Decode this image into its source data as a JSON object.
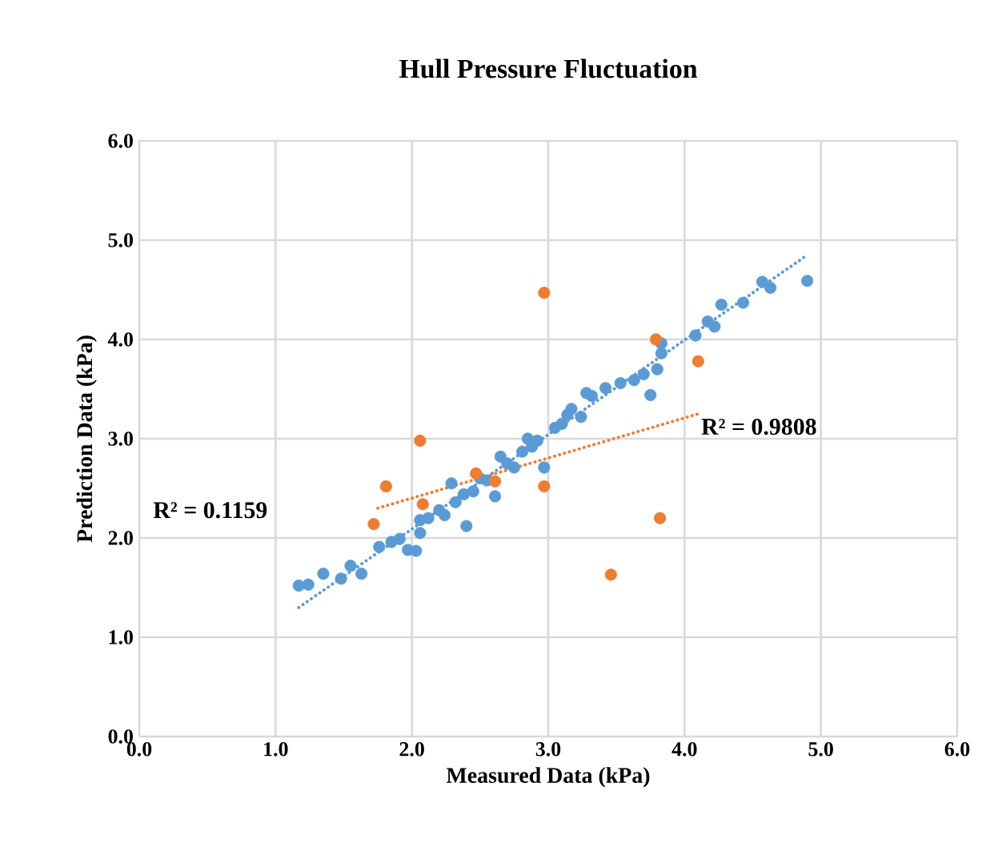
{
  "chart_data": {
    "type": "scatter",
    "title": "Hull Pressure Fluctuation",
    "xlabel": "Measured Data (kPa)",
    "ylabel": "Prediction Data (kPa)",
    "xlim": [
      0,
      6
    ],
    "ylim": [
      0,
      6
    ],
    "xticks": [
      {
        "value": 0,
        "label": "0.0"
      },
      {
        "value": 1,
        "label": "1.0"
      },
      {
        "value": 2,
        "label": "2.0"
      },
      {
        "value": 3,
        "label": "3.0"
      },
      {
        "value": 4,
        "label": "4.0"
      },
      {
        "value": 5,
        "label": "5.0"
      },
      {
        "value": 6,
        "label": "6.0"
      }
    ],
    "yticks": [
      {
        "value": 0,
        "label": "0.0"
      },
      {
        "value": 1,
        "label": "1.0"
      },
      {
        "value": 2,
        "label": "2.0"
      },
      {
        "value": 3,
        "label": "3.0"
      },
      {
        "value": 4,
        "label": "4.0"
      },
      {
        "value": 5,
        "label": "5.0"
      },
      {
        "value": 6,
        "label": "6.0"
      }
    ],
    "grid": true,
    "annotations": [
      "R² = 0.1159",
      "R² = 0.9808"
    ],
    "series": [
      {
        "marker": "circle",
        "color": "#5b9bd5",
        "x": [
          1.17,
          1.24,
          1.35,
          1.48,
          1.55,
          1.63,
          1.76,
          1.85,
          1.91,
          1.97,
          2.03,
          2.06,
          2.06,
          2.12,
          2.2,
          2.24,
          2.29,
          2.32,
          2.38,
          2.4,
          2.45,
          2.5,
          2.55,
          2.61,
          2.65,
          2.7,
          2.75,
          2.81,
          2.85,
          2.88,
          2.92,
          2.97,
          3.05,
          3.1,
          3.14,
          3.17,
          3.24,
          3.28,
          3.32,
          3.42,
          3.53,
          3.63,
          3.7,
          3.75,
          3.8,
          3.83,
          3.83,
          4.08,
          4.17,
          4.22,
          4.27,
          4.43,
          4.57,
          4.63,
          4.9
        ],
        "values": [
          1.52,
          1.53,
          1.64,
          1.59,
          1.72,
          1.64,
          1.91,
          1.96,
          1.99,
          1.88,
          1.87,
          2.18,
          2.05,
          2.2,
          2.28,
          2.23,
          2.55,
          2.36,
          2.44,
          2.12,
          2.47,
          2.6,
          2.58,
          2.42,
          2.82,
          2.75,
          2.71,
          2.87,
          3.0,
          2.92,
          2.98,
          2.71,
          3.11,
          3.15,
          3.24,
          3.3,
          3.22,
          3.46,
          3.43,
          3.51,
          3.56,
          3.59,
          3.65,
          3.44,
          3.7,
          3.86,
          3.96,
          4.04,
          4.18,
          4.13,
          4.35,
          4.37,
          4.58,
          4.52,
          4.59
        ]
      },
      {
        "marker": "circle",
        "color": "#ed7d31",
        "x": [
          1.72,
          1.81,
          2.06,
          2.08,
          2.47,
          2.61,
          2.97,
          2.97,
          3.46,
          3.79,
          3.82,
          4.1
        ],
        "values": [
          2.14,
          2.52,
          2.98,
          2.34,
          2.65,
          2.57,
          2.52,
          4.47,
          1.63,
          4.0,
          2.2,
          3.78
        ]
      },
      {
        "type": "line",
        "line_style": "dotted",
        "color": "#5b9bd5",
        "x": [
          1.17,
          4.9
        ],
        "values": [
          1.3,
          4.85
        ]
      },
      {
        "type": "line",
        "line_style": "dotted",
        "color": "#ed7d31",
        "x": [
          1.75,
          4.1
        ],
        "values": [
          2.3,
          3.25
        ]
      }
    ]
  }
}
